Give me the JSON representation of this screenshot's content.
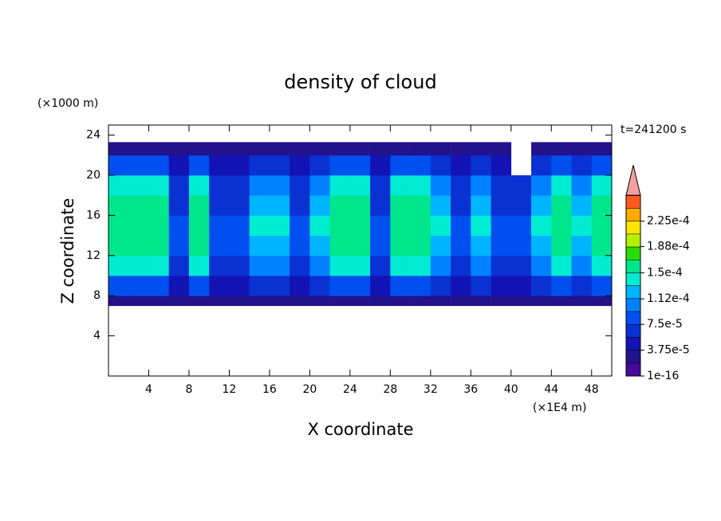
{
  "chart_data": {
    "type": "heatmap",
    "title": "density of cloud",
    "time_label": "t=241200 s",
    "x_label": "X coordinate",
    "y_label": "Z coordinate",
    "x_unit": "(×1E4 m)",
    "y_unit": "(×1000 m)",
    "xlim": [
      0,
      50
    ],
    "ylim": [
      0,
      25
    ],
    "xticks": [
      4,
      8,
      12,
      16,
      20,
      24,
      28,
      32,
      36,
      40,
      44,
      48
    ],
    "yticks": [
      4,
      8,
      12,
      16,
      20,
      24
    ],
    "x": [
      0,
      2,
      4,
      6,
      8,
      10,
      12,
      14,
      16,
      18,
      20,
      22,
      24,
      26,
      28,
      30,
      32,
      34,
      36,
      38,
      40,
      42,
      44,
      46,
      48,
      50
    ],
    "y": [
      7,
      8,
      10,
      12,
      14,
      16,
      18,
      20,
      22,
      23.3
    ],
    "z": [
      [
        2e-05,
        2e-05,
        2e-05,
        2e-05,
        2e-05,
        2e-05,
        2e-05,
        2e-05,
        2e-05,
        2e-05,
        2e-05,
        2e-05,
        2e-05,
        2e-05,
        2e-05,
        2e-05,
        2e-05,
        2e-05,
        2e-05,
        2e-05,
        2e-05,
        2e-05,
        2e-05,
        2e-05,
        2e-05
      ],
      [
        8e-05,
        8e-05,
        8e-05,
        5e-05,
        8e-05,
        5e-05,
        5e-05,
        7e-05,
        7e-05,
        5e-05,
        7e-05,
        8e-05,
        8e-05,
        5e-05,
        8e-05,
        8e-05,
        7e-05,
        5e-05,
        7e-05,
        5e-05,
        5e-05,
        7e-05,
        8e-05,
        7e-05,
        8e-05
      ],
      [
        0.000135,
        0.000135,
        0.000135,
        7e-05,
        0.000135,
        7e-05,
        7e-05,
        0.00011,
        0.00011,
        7e-05,
        0.00011,
        0.000135,
        0.000135,
        7e-05,
        0.000135,
        0.000135,
        0.00011,
        7e-05,
        0.00011,
        7e-05,
        7e-05,
        0.00011,
        0.000135,
        0.00011,
        0.000135
      ],
      [
        0.00016,
        0.00016,
        0.00016,
        8e-05,
        0.00016,
        8e-05,
        8e-05,
        0.00013,
        0.00013,
        8e-05,
        0.00013,
        0.00016,
        0.00016,
        8e-05,
        0.00016,
        0.00016,
        0.00013,
        8e-05,
        0.00013,
        8e-05,
        8e-05,
        0.00013,
        0.00016,
        0.00013,
        0.00016
      ],
      [
        0.000165,
        0.000165,
        0.000165,
        8e-05,
        0.000165,
        8e-05,
        8e-05,
        0.000135,
        0.000135,
        8e-05,
        0.000135,
        0.000165,
        0.000165,
        8e-05,
        0.000165,
        0.000165,
        0.000135,
        8e-05,
        0.000135,
        8e-05,
        8e-05,
        0.000135,
        0.000165,
        0.000135,
        0.000165
      ],
      [
        0.000155,
        0.000155,
        0.000155,
        7e-05,
        0.000155,
        7e-05,
        7e-05,
        0.00012,
        0.00012,
        7e-05,
        0.00012,
        0.000155,
        0.000155,
        7e-05,
        0.000155,
        0.000155,
        0.00012,
        7e-05,
        0.00012,
        7e-05,
        7e-05,
        0.00012,
        0.000155,
        0.00012,
        0.000155
      ],
      [
        0.000135,
        0.000135,
        0.000135,
        6e-05,
        0.000135,
        6e-05,
        6e-05,
        0.0001,
        0.0001,
        6e-05,
        0.0001,
        0.000135,
        0.000135,
        6e-05,
        0.000135,
        0.000135,
        0.0001,
        6e-05,
        0.0001,
        6e-05,
        6e-05,
        0.0001,
        0.000135,
        0.0001,
        0.000135
      ],
      [
        9e-05,
        9e-05,
        9e-05,
        4e-05,
        9e-05,
        4e-05,
        4e-05,
        6e-05,
        6e-05,
        4e-05,
        6e-05,
        9e-05,
        9e-05,
        4e-05,
        9e-05,
        9e-05,
        6e-05,
        4e-05,
        6e-05,
        4e-05,
        null,
        6e-05,
        9e-05,
        6e-05,
        9e-05
      ],
      [
        3e-05,
        3e-05,
        3e-05,
        2e-05,
        3e-05,
        2e-05,
        2e-05,
        2e-05,
        2e-05,
        2e-05,
        2e-05,
        3e-05,
        3e-05,
        2e-05,
        3e-05,
        3e-05,
        2e-05,
        2e-05,
        2e-05,
        2e-05,
        null,
        2e-05,
        3e-05,
        2e-05,
        3e-05
      ]
    ],
    "colorbar": {
      "levels": [
        1e-16,
        1.875e-05,
        3.75e-05,
        5.625e-05,
        7.5e-05,
        9.375e-05,
        0.0001125,
        0.00013125,
        0.00015,
        0.00016875,
        0.0001875,
        0.00020625,
        0.000225,
        0.00024375,
        0.0002625
      ],
      "colors": [
        "#460a9c",
        "#23128c",
        "#1414b4",
        "#0a32d2",
        "#0050f0",
        "#0082ff",
        "#00b4ff",
        "#00ecd2",
        "#00e68c",
        "#28dc00",
        "#b4f000",
        "#ffe600",
        "#ffaa00",
        "#ff5a1e"
      ],
      "extend_color": "#f4a0a0",
      "ticks": [
        1e-16,
        {
          "value": 3.75e-05,
          "label": "3.75e-5"
        },
        {
          "value": 7.5e-05,
          "label": "7.5e-5"
        },
        {
          "value": 0.000112,
          "label": "1.12e-4"
        },
        {
          "value": 0.00015,
          "label": "1.5e-4"
        },
        {
          "value": 0.000188,
          "label": "1.88e-4"
        },
        {
          "value": 0.000225,
          "label": "2.25e-4"
        }
      ]
    }
  }
}
